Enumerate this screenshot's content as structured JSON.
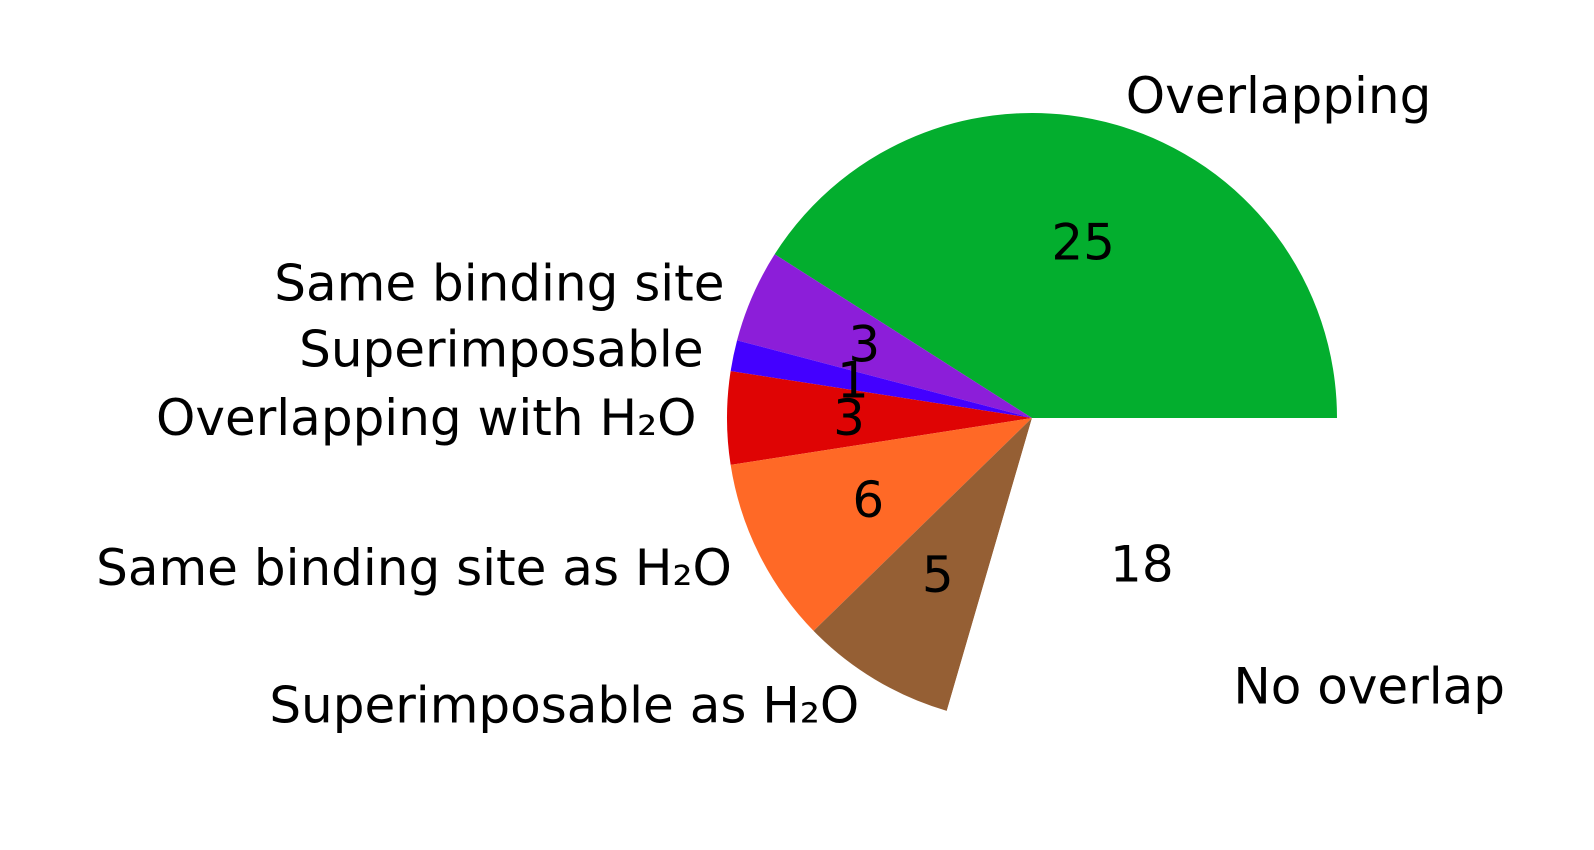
{
  "chart_data": {
    "type": "pie",
    "start_angle_deg": 0,
    "direction": "counterclockwise",
    "slices": [
      {
        "label": "Overlapping",
        "value": 25,
        "color": "#03ae2e"
      },
      {
        "label": "Same binding site",
        "value": 3,
        "color": "#8c1ed9"
      },
      {
        "label": "Superimposable",
        "value": 1,
        "color": "#4300ff"
      },
      {
        "label": "Overlapping with H₂O",
        "value": 3,
        "color": "#df0404"
      },
      {
        "label": "Same binding site as H₂O",
        "value": 6,
        "color": "#ff6926"
      },
      {
        "label": "Superimposable as H₂O",
        "value": 5,
        "color": "#955f34"
      },
      {
        "label": "No overlap",
        "value": 18,
        "color": "#ffffff"
      }
    ]
  }
}
